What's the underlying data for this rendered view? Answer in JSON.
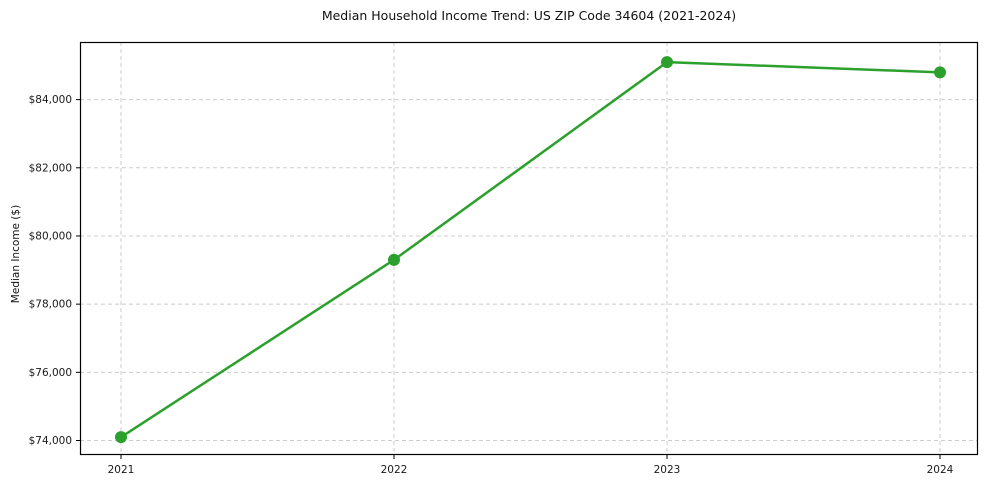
{
  "chart_data": {
    "type": "line",
    "title": "Median Household Income Trend: US ZIP Code 34604 (2021-2024)",
    "xlabel": "",
    "ylabel": "Median Income ($)",
    "categories": [
      "2021",
      "2022",
      "2023",
      "2024"
    ],
    "series": [
      {
        "name": "Median Household Income",
        "values": [
          74100,
          79300,
          85100,
          84800
        ],
        "color": "#2ca02c",
        "marker": "circle",
        "line_width": 2.5
      }
    ],
    "ylim": [
      73575,
      85690
    ],
    "yticks": [
      74000,
      76000,
      78000,
      80000,
      82000,
      84000
    ],
    "ytick_labels": [
      "$74,000",
      "$76,000",
      "$78,000",
      "$80,000",
      "$82,000",
      "$84,000"
    ],
    "xtick_labels": [
      "2021",
      "2022",
      "2023",
      "2024"
    ],
    "grid": true,
    "grid_style": "dashed",
    "legend_position": "none",
    "colors": {
      "line": "#2ca02c",
      "grid": "#cccccc",
      "spine": "#000000",
      "text": "#1a1a1a",
      "background": "#ffffff"
    }
  }
}
